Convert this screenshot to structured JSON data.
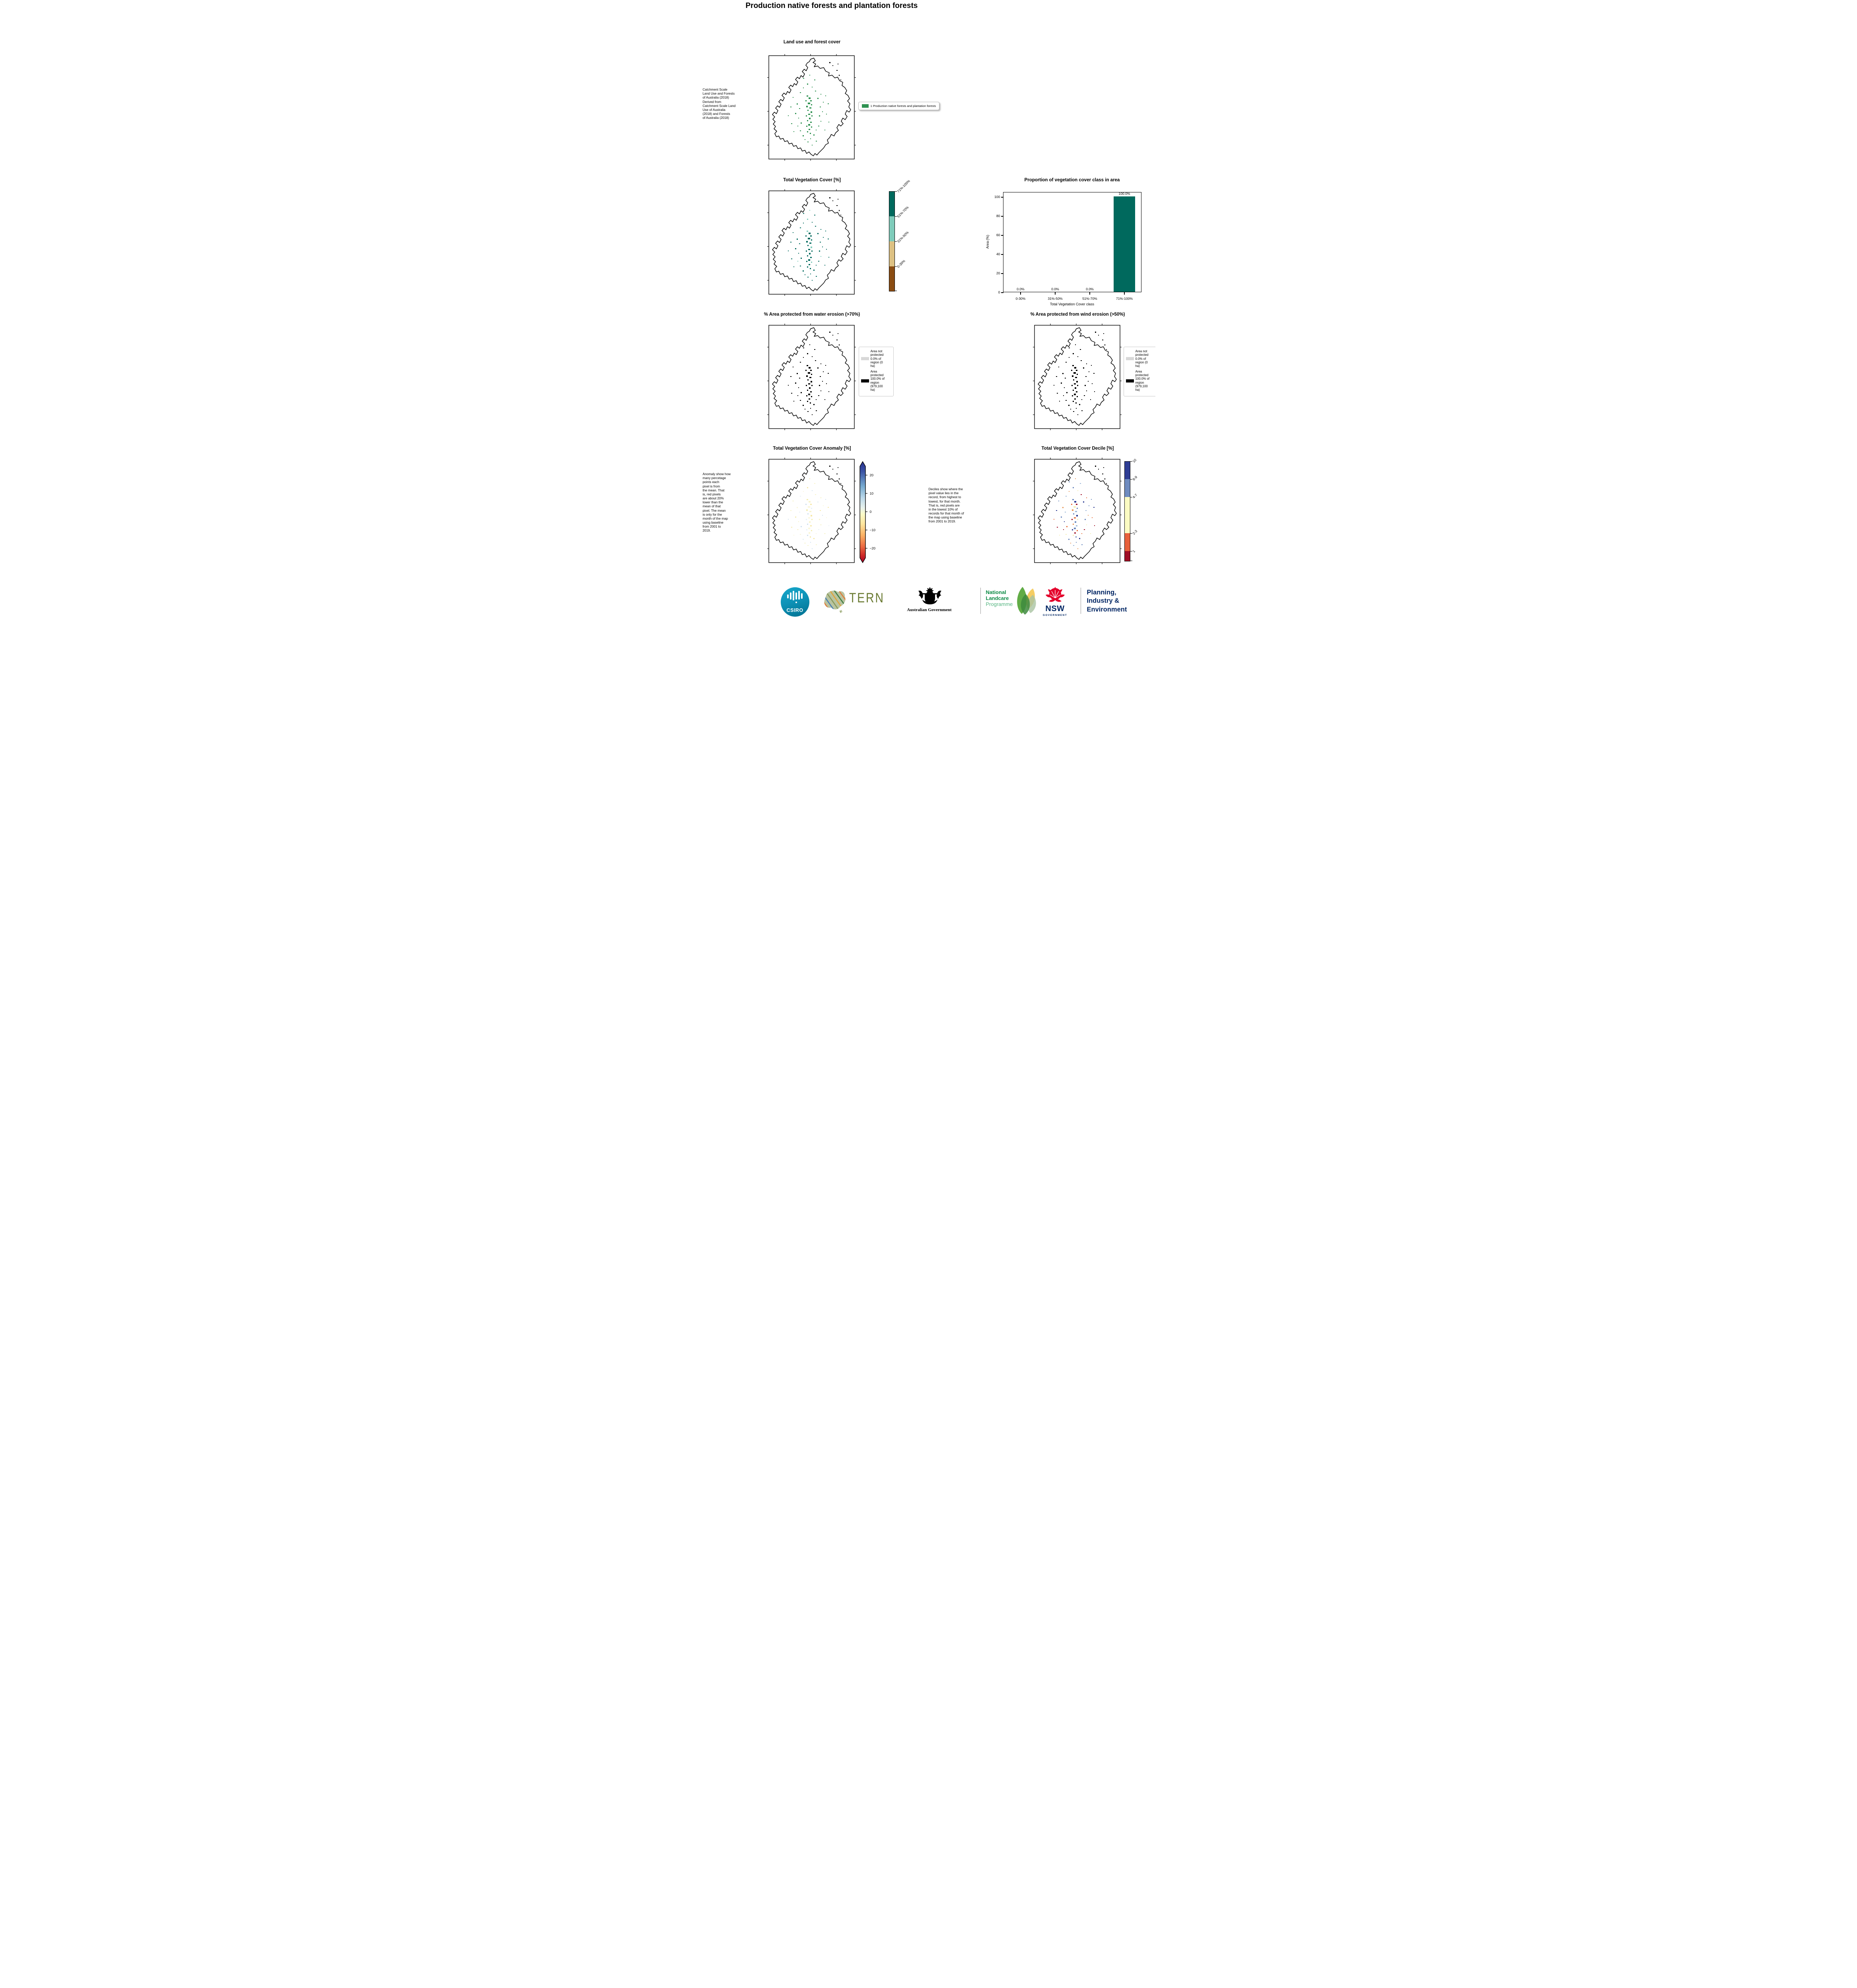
{
  "page_title": "Production native forests and plantation forests",
  "land_use": {
    "title": "Land use and forest cover",
    "side_note": "Catchment Scale\nLand Use and Forests\nof Australia (2018)\nDerived from\nCatchment Scale Land\nUse of Australia\n(2018) and Forests\nof Australia (2018)",
    "legend_label": "1 Production native forests and plantation forests",
    "legend_color": "#2e9150"
  },
  "tvc": {
    "title": "Total Vegetation Cover [%]",
    "colorbar": {
      "labels": [
        "71%-100%",
        "51%-70%",
        "31%-50%",
        "0-30%"
      ],
      "colors": [
        "#00695d",
        "#7fccbb",
        "#ddc183",
        "#8a4c12"
      ]
    }
  },
  "chart_data": {
    "type": "bar",
    "title": "Proportion of vegetation cover class in area",
    "categories": [
      "0-30%",
      "31%-50%",
      "51%-70%",
      "71%-100%"
    ],
    "values": [
      0.0,
      0.0,
      0.0,
      100.0
    ],
    "value_labels": [
      "0.0%",
      "0.0%",
      "0.0%",
      "100.0%"
    ],
    "xlabel": "Total Vegetation Cover class",
    "ylabel": "Area (%)",
    "ylim": [
      0,
      105
    ],
    "yticks": [
      0,
      20,
      40,
      60,
      80,
      100
    ],
    "bar_color": "#00695d",
    "grid": false,
    "legend_position": "none"
  },
  "water": {
    "title": "% Area protected from water erosion (>70%)",
    "legend": [
      {
        "label": "Area not\nprotected\n0.0% of\nregion (0\nha)",
        "color": "#d8d8d8"
      },
      {
        "label": "Area\nprotected\n100.0% of\nregion\n(979,100\nha)",
        "color": "#000000"
      }
    ]
  },
  "wind": {
    "title": "% Area protected from wind erosion (>50%)",
    "legend": [
      {
        "label": "Area not\nprotected\n0.0% of\nregion (0\nha)",
        "color": "#d8d8d8"
      },
      {
        "label": "Area\nprotected\n100.0% of\nregion\n(979,100\nha)",
        "color": "#000000"
      }
    ]
  },
  "anomaly": {
    "title": "Total Vegetation Cover Anomaly [%]",
    "side_note": "Anomaly show how\nmany percetage\npoints each\npixel is from\nthe mean. That\nis, red pixels\nare about 20%\nlower than the\nmean of that\npixel. The mean\nis only for the\nmonth of the map\nusing baseline\nfrom 2001 to\n2019.",
    "colorbar_ticks": [
      "20",
      "10",
      "0",
      "−10",
      "−20"
    ]
  },
  "decile": {
    "title": "Total Vegetation Cover Decile [%]",
    "side_note": "Deciles show where the\npixel value lies in the\nrecord, from highest to\nlowest, for that month.\nThat is, red pixels are\nin the lowest 10% of\nrecords for that month of\nthe map using baseline\nfrom 2001 to 2019.",
    "colorbar": {
      "labels": [
        "10",
        "8-9",
        "4-7",
        "2-3",
        "1"
      ],
      "colors": [
        "#2e3d94",
        "#6f8cc0",
        "#fbfbc3",
        "#e8613c",
        "#a00e26"
      ]
    }
  },
  "footer": {
    "csiro_label": "CSIRO",
    "tern_label": "TERN",
    "aus_gov_label": "Australian Government",
    "landcare_line1": "National",
    "landcare_line2": "Landcare",
    "landcare_line3": "Programme",
    "nsw_label": "NSW",
    "nsw_sub": "GOVERNMENT",
    "planning_line1": "Planning,",
    "planning_line2": "Industry &",
    "planning_line3": "Environment",
    "colors": {
      "csiro_teal": "#0e93b8",
      "tern_olive": "#6b7b33",
      "landcare_green": "#0b8a44",
      "landcare_light": "#56b581",
      "nsw_red": "#e4002b",
      "navy": "#002664"
    }
  }
}
